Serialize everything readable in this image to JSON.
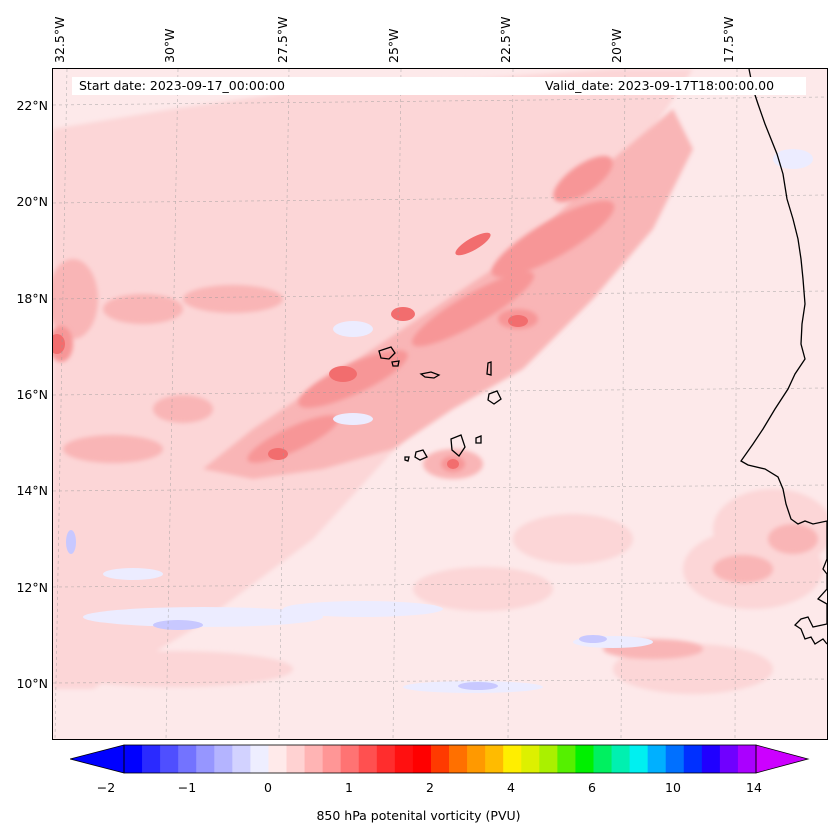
{
  "map": {
    "start_date": "Start date: 2023-09-17_00:00:00",
    "valid_date": "Valid_date: 2023-09-17T18:00:00.00",
    "longitude_labels": [
      "32.5°W",
      "30°W",
      "27.5°W",
      "25°W",
      "22.5°W",
      "20°W",
      "17.5°W"
    ],
    "latitude_labels": [
      "22°N",
      "20°N",
      "18°N",
      "16°N",
      "14°N",
      "12°N",
      "10°N"
    ],
    "colorbar": {
      "label": "850 hPa potenital vorticity (PVU)",
      "ticks": [
        "−2",
        "−1",
        "0",
        "1",
        "2",
        "4",
        "6",
        "10",
        "14"
      ],
      "colors": [
        "#0000ff",
        "#2a2aff",
        "#4f4fff",
        "#7373ff",
        "#9696ff",
        "#b4b4ff",
        "#d2d2ff",
        "#eeeeff",
        "#ffeaea",
        "#ffd2d2",
        "#ffb4b4",
        "#ff9696",
        "#ff7373",
        "#ff5050",
        "#ff2d2d",
        "#ff1010",
        "#ff0000",
        "#ff3a00",
        "#ff7000",
        "#ff9900",
        "#ffbb00",
        "#ffee00",
        "#ddf000",
        "#aaf000",
        "#55f000",
        "#00f000",
        "#00f060",
        "#00f0b0",
        "#00f0f0",
        "#00b0ff",
        "#0070ff",
        "#0030ff",
        "#2000ff",
        "#7000ff",
        "#aa00ff"
      ],
      "extend_min_color": "#0000ff",
      "extend_max_color": "#cc00ff"
    },
    "field_colors": {
      "base": "#fde9ea",
      "light_pink": "#fcd6d7",
      "pink": "#f9b5b6",
      "medium": "#f79697",
      "strong": "#f26d6e",
      "light_blue": "#ececff",
      "blue": "#c8c8ff"
    }
  }
}
